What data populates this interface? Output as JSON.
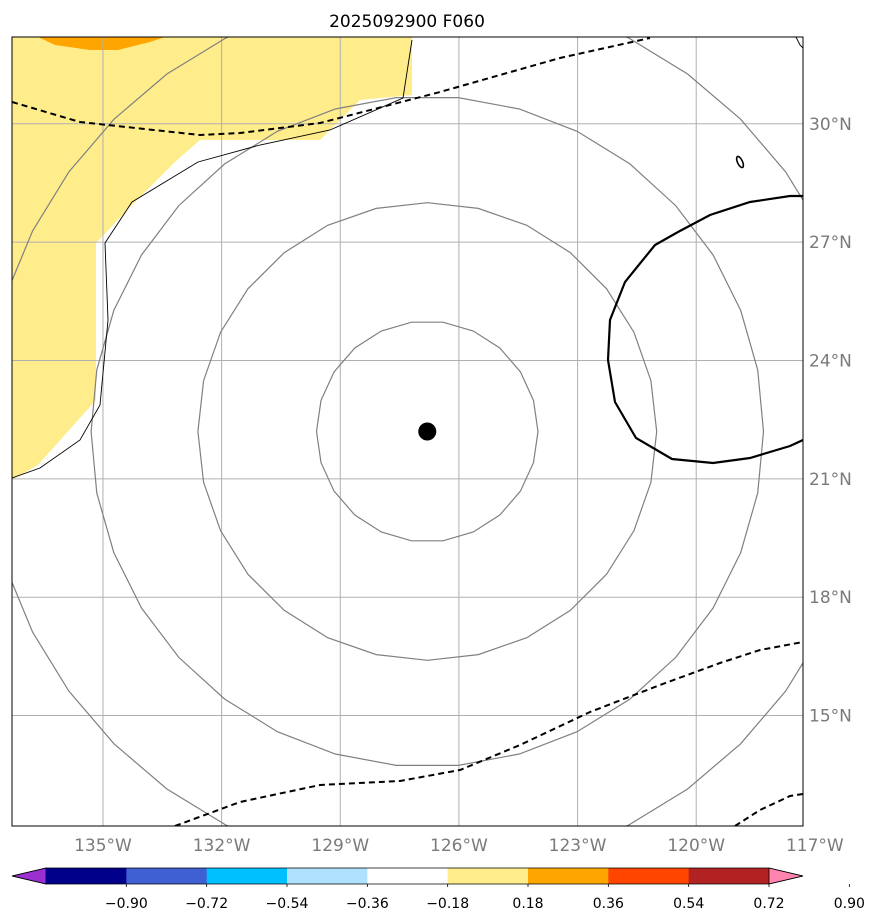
{
  "title": "2025092900 F060",
  "map": {
    "lon_range": [
      -137.3,
      -117.3
    ],
    "lat_range": [
      12.2,
      32.2
    ],
    "lon_ticks": [
      -135,
      -132,
      -129,
      -126,
      -123,
      -120,
      -117
    ],
    "lat_ticks": [
      15,
      18,
      21,
      24,
      27,
      30
    ],
    "lon_labels": [
      "135°W",
      "132°W",
      "129°W",
      "126°W",
      "123°W",
      "120°W",
      "117°W"
    ],
    "lat_labels": [
      "15°N",
      "18°N",
      "21°N",
      "24°N",
      "27°N",
      "30°N"
    ],
    "grid": true,
    "center_marker": {
      "lon": -126.8,
      "lat": 22.2
    },
    "circle_radii_deg": [
      2.8,
      5.8,
      8.5,
      11.2
    ]
  },
  "colorbar": {
    "labels": [
      "−0.90",
      "−0.72",
      "−0.54",
      "−0.36",
      "−0.18",
      "0.18",
      "0.36",
      "0.54",
      "0.72",
      "0.90"
    ],
    "colors": [
      "#9b30d0",
      "#00008b",
      "#3f60d0",
      "#00bfff",
      "#b0e2ff",
      "#ffffff",
      "#ffec8b",
      "#ffa500",
      "#ff4500",
      "#b22222",
      "#ff85b0"
    ]
  },
  "colors": {
    "shade_yellow": "#ffec8b",
    "shade_orange": "#ffa500",
    "grid": "#b0b0b0",
    "circle": "#808080"
  }
}
